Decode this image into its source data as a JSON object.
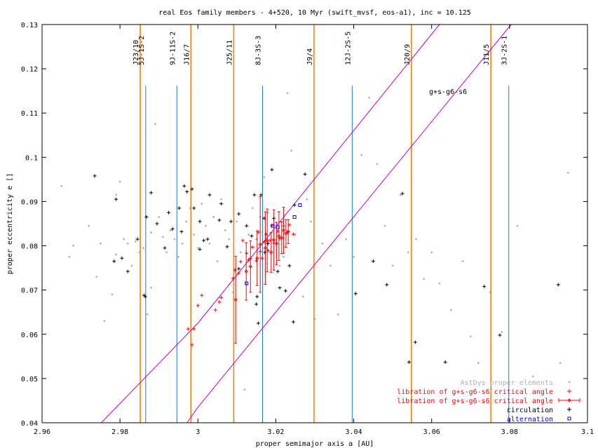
{
  "chart_data": {
    "type": "scatter",
    "title": "real Eos family members - 4+520, 10 Myr (swift_mvsf, eos-a1), inc = 10.125",
    "xlabel": "proper semimajor axis a [AU]",
    "ylabel": "proper eccentricity e []",
    "xlim": [
      2.96,
      3.1
    ],
    "ylim": [
      0.04,
      0.13
    ],
    "x_ticks": [
      "2.96",
      "2.98",
      "3",
      "3.02",
      "3.04",
      "3.06",
      "3.08",
      "3.1"
    ],
    "y_ticks": [
      "0.04",
      "0.05",
      "0.06",
      "0.07",
      "0.08",
      "0.09",
      "0.1",
      "0.11",
      "0.12",
      "0.13"
    ],
    "grid": false,
    "legend_position": "bottom-right",
    "colors": {
      "astdys": "#a0a0a0",
      "libration": "#ff0000",
      "circulation": "#000000",
      "alternation": "#0000ff",
      "mmr": "#ff8000",
      "three_body": "#1e78d8",
      "secular": "#c000c0"
    },
    "resonances": [
      {
        "label": "J23/10",
        "a": 2.9852,
        "kind": "mmr"
      },
      {
        "label": "5J-1S-2",
        "a": 2.9866,
        "kind": "three_body"
      },
      {
        "label": "9J-11S-2",
        "a": 2.9946,
        "kind": "three_body"
      },
      {
        "label": "J16/7",
        "a": 2.9982,
        "kind": "mmr"
      },
      {
        "label": "J25/11",
        "a": 3.0092,
        "kind": "mmr"
      },
      {
        "label": "8J-3S-3",
        "a": 3.0166,
        "kind": "three_body"
      },
      {
        "label": "J9/4",
        "a": 3.0298,
        "kind": "mmr"
      },
      {
        "label": "12J-2S-5",
        "a": 3.0396,
        "kind": "three_body"
      },
      {
        "label": "J20/9",
        "a": 3.0548,
        "kind": "mmr"
      },
      {
        "label": "J11/5",
        "a": 3.0752,
        "kind": "mmr"
      },
      {
        "label": "3J-2S-1",
        "a": 3.0798,
        "kind": "three_body"
      }
    ],
    "secular_label": "g+s-g6-s6",
    "secular_lines": [
      {
        "x": [
          2.9752,
          3.0
        ],
        "y": [
          0.04,
          0.0625
        ]
      },
      {
        "x": [
          3.0,
          3.062
        ],
        "y": [
          0.0625,
          0.13
        ]
      },
      {
        "x": [
          2.9972,
          3.0
        ],
        "y": [
          0.04,
          0.0435
        ]
      },
      {
        "x": [
          3.0,
          3.0804
        ],
        "y": [
          0.0435,
          0.13
        ]
      }
    ],
    "series": [
      {
        "name": "AstDys proper elements",
        "marker": "dot",
        "x": [
          2.965,
          2.967,
          2.968,
          2.972,
          2.974,
          2.975,
          2.976,
          2.978,
          2.979,
          2.979,
          2.98,
          2.981,
          2.982,
          2.983,
          2.984,
          2.985,
          2.986,
          2.987,
          2.988,
          2.988,
          2.989,
          2.99,
          2.991,
          2.992,
          2.993,
          2.994,
          2.995,
          2.996,
          2.997,
          2.998,
          2.999,
          3.0,
          3.001,
          3.002,
          3.003,
          3.004,
          3.005,
          3.006,
          3.007,
          3.008,
          3.009,
          3.01,
          3.011,
          3.012,
          3.013,
          3.014,
          3.015,
          3.016,
          3.017,
          3.018,
          3.019,
          3.02,
          3.021,
          3.022,
          3.023,
          3.024,
          3.025,
          3.026,
          3.027,
          3.028,
          3.029,
          3.03,
          3.032,
          3.034,
          3.036,
          3.038,
          3.04,
          3.042,
          3.044,
          3.046,
          3.048,
          3.05,
          3.052,
          3.054,
          3.056,
          3.058,
          3.06,
          3.062,
          3.065,
          3.068,
          3.07,
          3.072,
          3.075,
          3.078,
          3.082,
          3.086,
          3.09,
          3.093,
          3.095
        ],
        "y": [
          0.0935,
          0.0775,
          0.08,
          0.0845,
          0.073,
          0.0805,
          0.063,
          0.069,
          0.078,
          0.0915,
          0.0945,
          0.0815,
          0.0805,
          0.0755,
          0.081,
          0.0785,
          0.0795,
          0.0645,
          0.0705,
          0.083,
          0.1075,
          0.0865,
          0.082,
          0.0785,
          0.0835,
          0.0815,
          0.0775,
          0.0805,
          0.0855,
          0.0885,
          0.0825,
          0.0795,
          0.0895,
          0.0845,
          0.0805,
          0.0865,
          0.0765,
          0.0905,
          0.0835,
          0.0815,
          0.0695,
          0.0855,
          0.0785,
          0.0475,
          0.0825,
          0.0885,
          0.0815,
          0.0865,
          0.0955,
          0.0875,
          0.0815,
          0.0845,
          0.0755,
          0.0775,
          0.1145,
          0.1015,
          0.0825,
          0.0715,
          0.0685,
          0.0905,
          0.0855,
          0.0635,
          0.0805,
          0.0755,
          0.0645,
          0.0815,
          0.0775,
          0.1005,
          0.1135,
          0.0985,
          0.0845,
          0.0755,
          0.0915,
          0.0785,
          0.0815,
          0.0725,
          0.0785,
          0.0715,
          0.0655,
          0.0765,
          0.0595,
          0.0535,
          0.0695,
          0.0605,
          0.0845,
          0.0505,
          0.0425,
          0.0535,
          0.0965
        ]
      },
      {
        "name": "libration of g+s-g6-s6 critical angle",
        "marker": "plus",
        "x": [
          2.9975,
          2.9985,
          2.999,
          3.0,
          3.001,
          3.0045,
          3.0055,
          3.006,
          3.009,
          3.0095,
          3.0105,
          3.011,
          3.0115,
          3.0125,
          3.013,
          3.0135,
          3.014,
          3.015,
          3.0155,
          3.016,
          3.0165,
          3.017,
          3.0175,
          3.018,
          3.0185,
          3.019,
          3.0195,
          3.0205,
          3.021,
          3.022,
          3.023,
          3.0235,
          3.0245
        ],
        "y": [
          0.0612,
          0.0576,
          0.0612,
          0.0665,
          0.0688,
          0.0655,
          0.0673,
          0.0683,
          0.0726,
          0.0745,
          0.0738,
          0.0764,
          0.0812,
          0.0783,
          0.0768,
          0.0772,
          0.0797,
          0.0766,
          0.0831,
          0.0787,
          0.0772,
          0.0809,
          0.0826,
          0.0789,
          0.0812,
          0.0846,
          0.0806,
          0.0833,
          0.0817,
          0.0845,
          0.0831,
          0.0847,
          0.0826
        ]
      },
      {
        "name": "libration of g+s-g6-s6 critical angle",
        "marker": "errorbar",
        "x": [
          3.0097,
          3.0124,
          3.0135,
          3.0152,
          3.016,
          3.0173,
          3.0178,
          3.0188,
          3.0195,
          3.0202,
          3.0208,
          3.0215,
          3.022,
          3.0226,
          3.0232
        ],
        "y": [
          0.0678,
          0.0742,
          0.0753,
          0.0772,
          0.0803,
          0.0795,
          0.0812,
          0.0785,
          0.0813,
          0.0805,
          0.0822,
          0.0818,
          0.0835,
          0.0828,
          0.0832
        ],
        "err": [
          0.0098,
          0.0065,
          0.0058,
          0.0062,
          0.0108,
          0.0082,
          0.0071,
          0.0045,
          0.0068,
          0.0048,
          0.0055,
          0.0036,
          0.0052,
          0.0031,
          0.0027
        ]
      },
      {
        "name": "circulation",
        "marker": "plus",
        "x": [
          2.9735,
          2.979,
          2.9805,
          2.982,
          2.9845,
          2.9865,
          2.9862,
          2.988,
          2.9895,
          2.9915,
          2.9935,
          2.9952,
          2.9958,
          2.9972,
          2.9985,
          2.999,
          3.0005,
          3.0015,
          3.003,
          3.0055,
          3.006,
          3.0085,
          3.0105,
          3.0125,
          3.0145,
          3.015,
          3.0155,
          3.017,
          3.019,
          3.021,
          3.0225,
          3.0235,
          3.0245,
          3.0248,
          3.0275,
          3.0405,
          3.045,
          3.0485,
          3.0525,
          3.0542,
          3.0558,
          3.0635,
          3.0735,
          3.0775,
          3.0925,
          2.9785,
          2.9868,
          2.9925,
          2.9965,
          3.0005,
          3.0025,
          3.0075,
          3.0105,
          3.0138,
          3.0172,
          3.0195,
          3.0205,
          3.0152,
          3.0162,
          3.018
        ],
        "y": [
          0.0958,
          0.0905,
          0.0772,
          0.0742,
          0.0815,
          0.0685,
          0.0688,
          0.092,
          0.085,
          0.0795,
          0.0838,
          0.0885,
          0.0832,
          0.0922,
          0.0928,
          0.0885,
          0.0792,
          0.0812,
          0.0915,
          0.0858,
          0.0895,
          0.0855,
          0.0872,
          0.0845,
          0.0915,
          0.0668,
          0.0625,
          0.0862,
          0.0972,
          0.0705,
          0.0698,
          0.0755,
          0.0628,
          0.0892,
          0.0962,
          0.0692,
          0.0765,
          0.0712,
          0.0918,
          0.0537,
          0.0582,
          0.0537,
          0.0708,
          0.0598,
          0.0712,
          0.0765,
          0.0865,
          0.0875,
          0.0935,
          0.0855,
          0.0815,
          0.0798,
          0.0748,
          0.0822,
          0.0785,
          0.0862,
          0.0742,
          0.0685,
          0.0915,
          0.0805
        ]
      },
      {
        "name": "alternation",
        "marker": "square",
        "x": [
          3.0125,
          3.0192,
          3.0248,
          3.0262,
          3.0205
        ],
        "y": [
          0.0715,
          0.0845,
          0.0865,
          0.0892,
          0.0842
        ]
      }
    ]
  }
}
